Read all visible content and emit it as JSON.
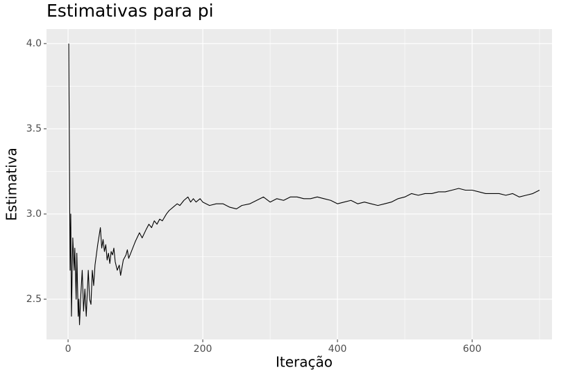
{
  "chart_data": {
    "type": "line",
    "title": "Estimativas para pi",
    "x_label": "Iteração",
    "y_label": "Estimativa",
    "x": [
      1,
      3,
      4,
      5,
      7,
      9,
      10,
      12,
      13,
      15,
      16,
      17,
      19,
      21,
      23,
      25,
      27,
      30,
      32,
      34,
      36,
      38,
      40,
      44,
      48,
      50,
      52,
      54,
      56,
      58,
      60,
      62,
      64,
      66,
      68,
      70,
      73,
      76,
      78,
      82,
      86,
      88,
      90,
      94,
      100,
      106,
      110,
      116,
      120,
      124,
      128,
      132,
      136,
      140,
      146,
      150,
      156,
      162,
      166,
      172,
      178,
      182,
      186,
      190,
      196,
      200,
      210,
      220,
      230,
      240,
      250,
      258,
      270,
      280,
      290,
      300,
      310,
      320,
      330,
      340,
      350,
      360,
      370,
      380,
      390,
      400,
      410,
      420,
      430,
      440,
      450,
      460,
      470,
      480,
      490,
      500,
      510,
      520,
      530,
      540,
      550,
      560,
      570,
      580,
      590,
      600,
      610,
      620,
      630,
      640,
      650,
      660,
      670,
      680,
      690,
      700
    ],
    "series": [
      {
        "name": "Estimativa",
        "color": "#000000",
        "values": [
          4.0,
          2.67,
          3.0,
          2.4,
          2.86,
          2.67,
          2.8,
          2.5,
          2.77,
          2.4,
          2.5,
          2.35,
          2.53,
          2.67,
          2.43,
          2.56,
          2.4,
          2.67,
          2.5,
          2.47,
          2.67,
          2.58,
          2.7,
          2.82,
          2.92,
          2.8,
          2.85,
          2.78,
          2.82,
          2.73,
          2.77,
          2.71,
          2.78,
          2.76,
          2.8,
          2.72,
          2.67,
          2.7,
          2.64,
          2.73,
          2.76,
          2.79,
          2.74,
          2.78,
          2.84,
          2.89,
          2.86,
          2.91,
          2.94,
          2.92,
          2.96,
          2.94,
          2.97,
          2.96,
          3.0,
          3.02,
          3.04,
          3.06,
          3.05,
          3.08,
          3.1,
          3.07,
          3.09,
          3.07,
          3.09,
          3.07,
          3.05,
          3.06,
          3.06,
          3.04,
          3.03,
          3.05,
          3.06,
          3.08,
          3.1,
          3.07,
          3.09,
          3.08,
          3.1,
          3.1,
          3.09,
          3.09,
          3.1,
          3.09,
          3.08,
          3.06,
          3.07,
          3.08,
          3.06,
          3.07,
          3.06,
          3.05,
          3.06,
          3.07,
          3.09,
          3.1,
          3.12,
          3.11,
          3.12,
          3.12,
          3.13,
          3.13,
          3.14,
          3.15,
          3.14,
          3.14,
          3.13,
          3.12,
          3.12,
          3.12,
          3.11,
          3.12,
          3.1,
          3.11,
          3.12,
          3.14
        ]
      }
    ],
    "xlim": [
      -32,
      718.5
    ],
    "xticks": [
      0,
      200,
      400,
      600
    ],
    "xminor": [
      100,
      300,
      500,
      700
    ],
    "ylim": [
      2.264,
      4.085
    ],
    "yticks": [
      {
        "value": 2.5,
        "label": "2.5"
      },
      {
        "value": 3.0,
        "label": "3.0"
      },
      {
        "value": 3.5,
        "label": "3.5"
      },
      {
        "value": 4.0,
        "label": "4.0"
      }
    ],
    "yminor": [
      2.75,
      3.25,
      3.75
    ],
    "grid": true
  }
}
